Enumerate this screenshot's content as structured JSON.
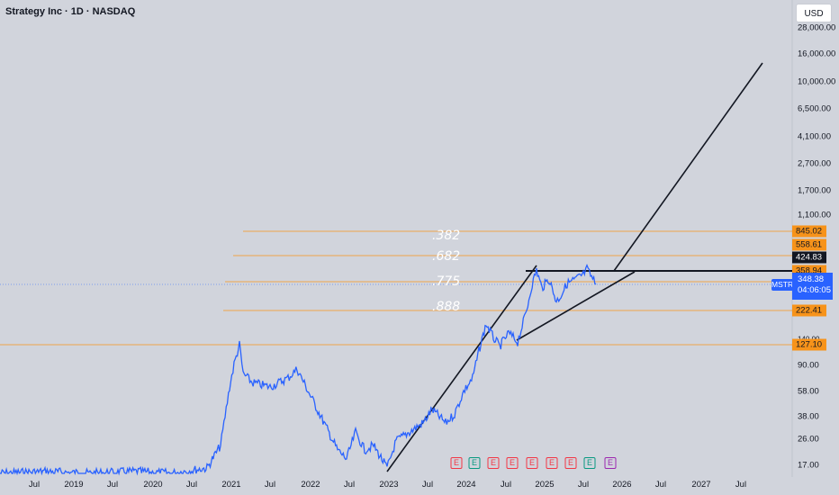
{
  "header": {
    "title": "Strategy Inc · 1D · NASDAQ",
    "currency": "USD"
  },
  "colors": {
    "price_line": "#2962ff",
    "fib_line": "#f7931a",
    "background": "#d1d4dc",
    "trendline": "#131722"
  },
  "y_axis": {
    "ticks": [
      "28,000.00",
      "16,000.00",
      "10,000.00",
      "6,500.00",
      "4,100.00",
      "2,700.00",
      "1,700.00",
      "1,100.00",
      "90.00",
      "58.00",
      "38.00",
      "26.00",
      "17.00"
    ]
  },
  "x_axis": {
    "ticks": [
      "Jul",
      "2019",
      "Jul",
      "2020",
      "Jul",
      "2021",
      "Jul",
      "2022",
      "Jul",
      "2023",
      "Jul",
      "2024",
      "Jul",
      "2025",
      "Jul",
      "2026",
      "Jul",
      "2027",
      "Jul"
    ]
  },
  "fib_levels": [
    {
      "label": ".382",
      "price_badge": "845.02",
      "ticker_price": "558.61"
    },
    {
      "label": ".682",
      "price_badge": "424.83"
    },
    {
      "label": ".775",
      "price_badge": "358.94"
    },
    {
      "label": ".888",
      "price_badge": "222.41"
    },
    {
      "label": "",
      "price_badge": "127.10"
    }
  ],
  "ticker": {
    "symbol": "MSTR",
    "price": "348.38",
    "countdown": "04:06:05"
  },
  "earnings_markers": [
    {
      "letter": "E",
      "color": "red"
    },
    {
      "letter": "E",
      "color": "green"
    },
    {
      "letter": "E",
      "color": "red"
    },
    {
      "letter": "E",
      "color": "red"
    },
    {
      "letter": "E",
      "color": "red"
    },
    {
      "letter": "E",
      "color": "red"
    },
    {
      "letter": "E",
      "color": "red"
    },
    {
      "letter": "E",
      "color": "green"
    },
    {
      "letter": "E",
      "color": "purple"
    }
  ],
  "partial_tick": "140.00"
}
